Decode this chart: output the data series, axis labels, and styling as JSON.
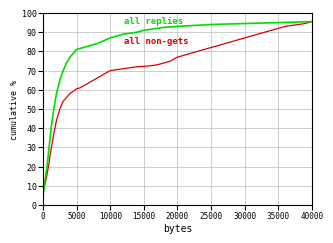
{
  "title": "",
  "xlabel": "bytes",
  "ylabel": "cumulative %",
  "xlim": [
    0,
    40000
  ],
  "ylim": [
    0,
    100
  ],
  "xticks": [
    0,
    5000,
    10000,
    15000,
    20000,
    25000,
    30000,
    35000,
    40000
  ],
  "yticks": [
    0,
    10,
    20,
    30,
    40,
    50,
    60,
    70,
    80,
    90,
    100
  ],
  "grid_color": "#bbbbbb",
  "bg_color": "#ffffff",
  "legend_green": "all replies",
  "legend_red": "all non-gets",
  "green_color": "#00dd00",
  "red_color": "#dd0000",
  "font_color": "#000000",
  "green_x": [
    0,
    100,
    300,
    600,
    900,
    1200,
    1600,
    2000,
    2500,
    3000,
    3500,
    4000,
    4500,
    5000,
    6000,
    7000,
    8000,
    9000,
    10000,
    11000,
    12000,
    13000,
    14000,
    15000,
    18000,
    20000,
    25000,
    30000,
    35000,
    40000
  ],
  "green_y": [
    5,
    8,
    13,
    20,
    30,
    40,
    50,
    58,
    65,
    70,
    74,
    77,
    79,
    81,
    82,
    83,
    84,
    85.5,
    87,
    88,
    89,
    89.5,
    90,
    91,
    92.5,
    93,
    94,
    94.5,
    95,
    95.5
  ],
  "red_x": [
    0,
    100,
    300,
    500,
    700,
    900,
    1100,
    1300,
    1600,
    2000,
    2500,
    3000,
    3500,
    4000,
    4200,
    4400,
    4600,
    4800,
    5000,
    5500,
    6000,
    6500,
    7000,
    8000,
    9000,
    10000,
    11000,
    12000,
    13000,
    14000,
    15000,
    16000,
    17000,
    18000,
    19000,
    20000,
    21000,
    22000,
    23000,
    24000,
    25000,
    26000,
    27000,
    28000,
    29000,
    30000,
    31000,
    32000,
    33000,
    34000,
    35000,
    36000,
    37000,
    38000,
    39000,
    40000
  ],
  "red_y": [
    5,
    8,
    11,
    14,
    18,
    22,
    27,
    31,
    37,
    44,
    50,
    54,
    56,
    58,
    58.5,
    59,
    59.5,
    60,
    60.5,
    61,
    62,
    63,
    64,
    66,
    68,
    70,
    70.5,
    71,
    71.5,
    72,
    72.2,
    72.5,
    73,
    74,
    75,
    77,
    78,
    79,
    80,
    81,
    82,
    83,
    84,
    85,
    86,
    87,
    88,
    89,
    90,
    91,
    92,
    93,
    93.5,
    94,
    94.5,
    95.5
  ]
}
